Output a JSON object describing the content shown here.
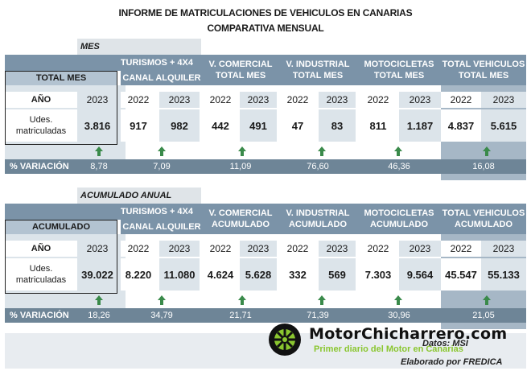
{
  "title_line1": "INFORME DE MATRICULACIONES DE VEHICULOS EN CANARIAS",
  "title_line2": "COMPARATIVA MENSUAL",
  "sections": [
    {
      "section_label": "MES",
      "group_turismos": "TURISMOS + 4X4",
      "sub_total": "TOTAL MES",
      "sub_canal": "CANAL ALQUILER",
      "col_vcom": [
        "V. COMERCIAL",
        "TOTAL MES"
      ],
      "col_vind": [
        "V. INDUSTRIAL",
        "TOTAL MES"
      ],
      "col_moto": [
        "MOTOCICLETAS",
        "TOTAL MES"
      ],
      "col_total": [
        "TOTAL VEHICULOS",
        "TOTAL MES"
      ],
      "row_ano": "AÑO",
      "row_udes": [
        "Udes.",
        "matriculadas"
      ],
      "years": [
        "2023",
        "2022",
        "2023",
        "2022",
        "2023",
        "2022",
        "2023",
        "2022",
        "2023",
        "2022",
        "2023"
      ],
      "values": [
        "3.816",
        "917",
        "982",
        "442",
        "491",
        "47",
        "83",
        "811",
        "1.187",
        "4.837",
        "5.615"
      ],
      "var_label": "% VARIACIÓN",
      "variations": [
        "8,78",
        "7,09",
        "11,09",
        "76,60",
        "46,36",
        "16,08"
      ]
    },
    {
      "section_label": "ACUMULADO ANUAL",
      "group_turismos": "TURISMOS + 4X4",
      "sub_total": "ACUMULADO",
      "sub_canal": "CANAL ALQUILER",
      "col_vcom": [
        "V. COMERCIAL",
        "ACUMULADO"
      ],
      "col_vind": [
        "V. INDUSTRIAL",
        "ACUMULADO"
      ],
      "col_moto": [
        "MOTOCICLETAS",
        "ACUMULADO"
      ],
      "col_total": [
        "TOTAL VEHICULOS",
        "ACUMULADO"
      ],
      "row_ano": "AÑO",
      "row_udes": [
        "Udes.",
        "matriculadas"
      ],
      "years": [
        "2023",
        "2022",
        "2023",
        "2022",
        "2023",
        "2022",
        "2023",
        "2022",
        "2023",
        "2022",
        "2023"
      ],
      "values": [
        "39.022",
        "8.220",
        "11.080",
        "4.624",
        "5.628",
        "332",
        "569",
        "7.303",
        "9.564",
        "45.547",
        "55.133"
      ],
      "var_label": "% VARIACIÓN",
      "variations": [
        "18,26",
        "34,79",
        "21,71",
        "71,39",
        "30,96",
        "21,05"
      ]
    }
  ],
  "footer": {
    "brand": "MotorChicharrero.com",
    "tagline": "Primer diario del Motor en Canarias",
    "datos": "Datos: MSI",
    "elaborado": "Elaborado por  FREDICA"
  },
  "colors": {
    "header_dark": "#7b93a8",
    "header_light": "#b3c3d1",
    "value_light": "#dce4ea",
    "arrow_green": "#3a8a4a",
    "brand_green": "#8ac62f"
  },
  "icons": [
    "up-arrow-icon",
    "wheel-logo-icon"
  ]
}
